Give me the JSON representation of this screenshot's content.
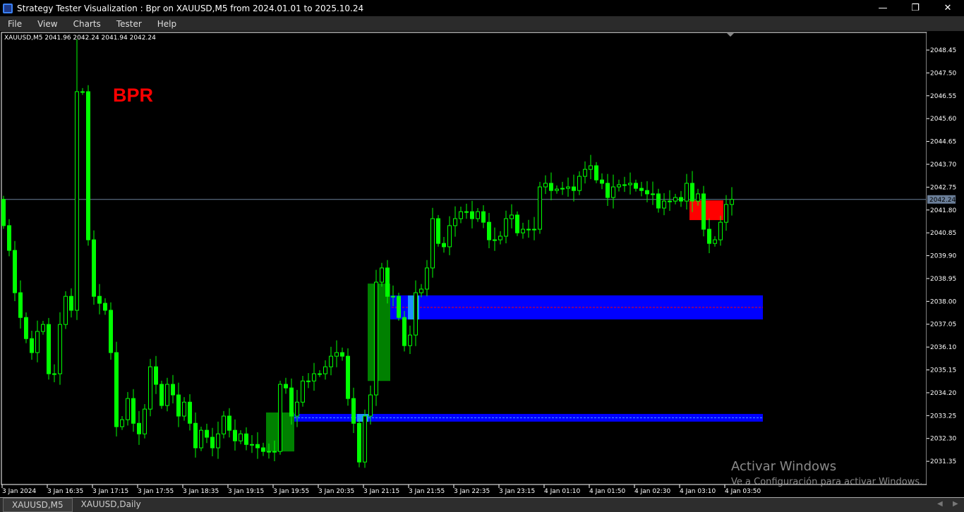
{
  "window": {
    "title": "Strategy Tester Visualization : Bpr on XAUUSD,M5 from 2024.01.01 to 2025.10.24",
    "controls": [
      "minimize",
      "maximize",
      "close"
    ]
  },
  "menu": [
    "File",
    "View",
    "Charts",
    "Tester",
    "Help"
  ],
  "chart": {
    "info": "XAUUSD,M5  2041.96 2042.24 2041.94 2042.24",
    "label": "BPR",
    "current_price": "2042.24",
    "colors": {
      "bull": "#00ff00",
      "bear": "#00ff00",
      "zone": "#0000ff",
      "zone_light": "#1e90ff",
      "bpr_green": "#008000",
      "bpr_red": "#ff0000",
      "dashed": "#ff0000",
      "label": "#ff0000"
    }
  },
  "chart_data": {
    "type": "candlestick",
    "price_ticks": [
      "2048.45",
      "2047.50",
      "2046.55",
      "2045.60",
      "2044.65",
      "2043.70",
      "2042.75",
      "2041.80",
      "2040.85",
      "2039.90",
      "2038.95",
      "2038.00",
      "2037.05",
      "2036.10",
      "2035.15",
      "2034.20",
      "2033.25",
      "2032.30",
      "2031.35"
    ],
    "time_ticks": [
      "3 Jan 2024",
      "3 Jan 16:35",
      "3 Jan 17:15",
      "3 Jan 17:55",
      "3 Jan 18:35",
      "3 Jan 19:15",
      "3 Jan 19:55",
      "3 Jan 20:35",
      "3 Jan 21:15",
      "3 Jan 21:55",
      "3 Jan 22:35",
      "3 Jan 23:15",
      "4 Jan 01:10",
      "4 Jan 01:50",
      "4 Jan 02:30",
      "4 Jan 03:10",
      "4 Jan 03:50"
    ],
    "first_open": 2042.24,
    "closes": [
      2041.15,
      2040.12,
      2038.36,
      2037.33,
      2036.45,
      2035.87,
      2036.75,
      2037.04,
      2034.99,
      2034.99,
      2037.04,
      2038.21,
      2037.63,
      2046.72,
      2046.72,
      2040.56,
      2038.21,
      2037.92,
      2037.63,
      2035.87,
      2032.79,
      2033.08,
      2033.96,
      2032.93,
      2032.49,
      2033.52,
      2035.28,
      2034.55,
      2033.67,
      2034.55,
      2034.11,
      2033.23,
      2033.81,
      2032.93,
      2031.91,
      2032.64,
      2032.35,
      2031.91,
      2032.49,
      2033.23,
      2032.64,
      2032.2,
      2032.49,
      2032.05,
      2032.05,
      2031.91,
      2031.76,
      2031.76,
      2031.76,
      2034.55,
      2034.4,
      2033.23,
      2033.81,
      2034.69,
      2034.69,
      2034.99,
      2034.99,
      2035.28,
      2035.72,
      2035.87,
      2035.72,
      2033.96,
      2032.93,
      2031.32,
      2033.23,
      2034.11,
      2038.8,
      2039.39,
      2038.21,
      2038.21,
      2037.33,
      2036.16,
      2036.6,
      2038.36,
      2038.51,
      2039.39,
      2041.44,
      2040.41,
      2040.27,
      2041.15,
      2041.44,
      2041.73,
      2041.73,
      2041.44,
      2041.73,
      2041.29,
      2040.56,
      2040.56,
      2040.71,
      2041.44,
      2041.59,
      2040.85,
      2041.0,
      2041.0,
      2041.0,
      2042.76,
      2042.91,
      2042.61,
      2042.67,
      2042.7,
      2042.76,
      2042.61,
      2043.2,
      2043.49,
      2043.64,
      2043.05,
      2042.91,
      2042.32,
      2042.76,
      2042.85,
      2042.85,
      2042.91,
      2042.7,
      2042.61,
      2042.47,
      2042.47,
      2041.88,
      2042.17,
      2042.17,
      2042.32,
      2042.17,
      2042.91,
      2042.17,
      2042.47,
      2041.0,
      2040.41,
      2040.56,
      2041.29,
      2042.03,
      2042.24
    ],
    "zones": [
      {
        "kind": "blue",
        "bar_start": 68,
        "bar_end": 134,
        "top": 2038.25,
        "bottom": 2037.25,
        "mid": 2037.75
      },
      {
        "kind": "blue",
        "bar_start": 52,
        "bar_end": 134,
        "top": 2033.32,
        "bottom": 2033.0,
        "mid": 2033.16
      },
      {
        "kind": "green",
        "bar_start": 47,
        "bar_end": 51,
        "top": 2033.38,
        "bottom": 2031.76
      },
      {
        "kind": "green",
        "bar_start": 65,
        "bar_end": 68,
        "top": 2038.74,
        "bottom": 2034.69
      },
      {
        "kind": "red",
        "bar_start": 122,
        "bar_end": 127,
        "top": 2042.2,
        "bottom": 2041.38
      }
    ]
  },
  "watermark": {
    "line1": "Activar Windows",
    "line2": "Ve a Configuración para activar Windows."
  },
  "tabs": [
    {
      "label": "XAUUSD,M5",
      "active": true
    },
    {
      "label": "XAUUSD,Daily",
      "active": false
    }
  ]
}
